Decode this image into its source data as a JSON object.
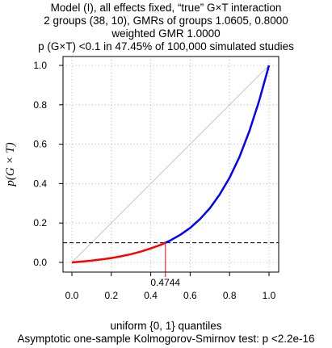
{
  "chart_data": {
    "type": "line",
    "title_lines": [
      "Model (I), all effects fixed, “true” G×T interaction",
      "2 groups (38, 10), GMRs of groups 1.0605, 0.8000",
      "weighted GMR 1.0000",
      "p (G×T) <0.1 in 47.45% of 100,000 simulated studies"
    ],
    "xlabel": "uniform {0, 1} quantiles",
    "ylabel": "p(G × T)",
    "subtitle": "Asymptotic one-sample Kolmogorov-Smirnov test: p <2.2e-16",
    "xlim": [
      0,
      1
    ],
    "ylim": [
      0,
      1
    ],
    "x_ticks": [
      "0.0",
      "0.2",
      "0.4",
      "0.6",
      "0.8",
      "1.0"
    ],
    "y_ticks": [
      "0.0",
      "0.2",
      "0.4",
      "0.6",
      "0.8",
      "1.0"
    ],
    "grid": true,
    "threshold": 0.1,
    "crossing_x": 0.4744,
    "crossing_label": "0.4744",
    "colors": {
      "below": "#ff0000",
      "above": "#0000ff",
      "identity": "#c8c8c8",
      "grid": "#bbbbbb"
    },
    "series": [
      {
        "segment": "below-threshold",
        "color": "#ff0000",
        "x": [
          0.0,
          0.05,
          0.1,
          0.15,
          0.2,
          0.25,
          0.3,
          0.35,
          0.4,
          0.45,
          0.4744
        ],
        "y": [
          0.0,
          0.004,
          0.009,
          0.015,
          0.022,
          0.031,
          0.042,
          0.055,
          0.071,
          0.089,
          0.1
        ]
      },
      {
        "segment": "above-threshold",
        "color": "#0000ff",
        "x": [
          0.4744,
          0.5,
          0.55,
          0.6,
          0.65,
          0.7,
          0.75,
          0.8,
          0.85,
          0.9,
          0.95,
          1.0
        ],
        "y": [
          0.1,
          0.112,
          0.14,
          0.175,
          0.22,
          0.275,
          0.345,
          0.43,
          0.535,
          0.665,
          0.82,
          1.0
        ]
      }
    ]
  }
}
